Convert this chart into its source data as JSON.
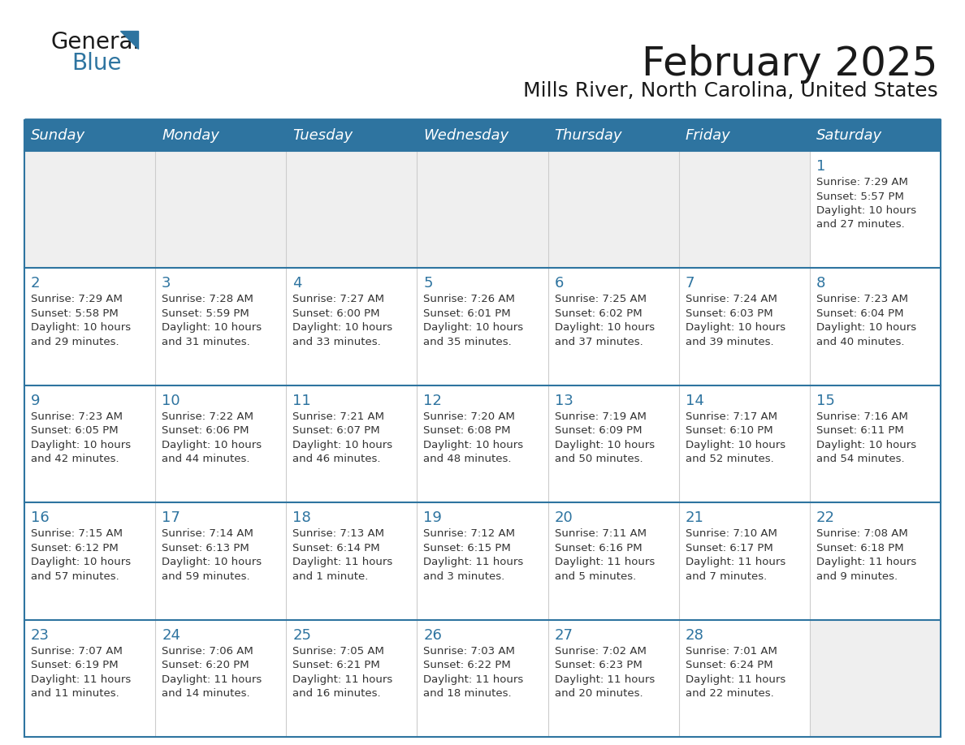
{
  "title": "February 2025",
  "subtitle": "Mills River, North Carolina, United States",
  "header_bg_color": "#2E74A0",
  "header_text_color": "#FFFFFF",
  "cell_bg_color": "#FFFFFF",
  "alt_cell_bg_color": "#EFEFEF",
  "border_color": "#2E74A0",
  "day_headers": [
    "Sunday",
    "Monday",
    "Tuesday",
    "Wednesday",
    "Thursday",
    "Friday",
    "Saturday"
  ],
  "title_color": "#1a1a1a",
  "subtitle_color": "#1a1a1a",
  "day_number_color": "#2E74A0",
  "cell_text_color": "#333333",
  "logo_general_color": "#1a1a1a",
  "logo_blue_color": "#2E74A0",
  "logo_triangle_color": "#2E74A0",
  "calendar_data": [
    [
      null,
      null,
      null,
      null,
      null,
      null,
      {
        "day": 1,
        "sunrise": "7:29 AM",
        "sunset": "5:57 PM",
        "daylight": "10 hours and 27 minutes."
      }
    ],
    [
      {
        "day": 2,
        "sunrise": "7:29 AM",
        "sunset": "5:58 PM",
        "daylight": "10 hours and 29 minutes."
      },
      {
        "day": 3,
        "sunrise": "7:28 AM",
        "sunset": "5:59 PM",
        "daylight": "10 hours and 31 minutes."
      },
      {
        "day": 4,
        "sunrise": "7:27 AM",
        "sunset": "6:00 PM",
        "daylight": "10 hours and 33 minutes."
      },
      {
        "day": 5,
        "sunrise": "7:26 AM",
        "sunset": "6:01 PM",
        "daylight": "10 hours and 35 minutes."
      },
      {
        "day": 6,
        "sunrise": "7:25 AM",
        "sunset": "6:02 PM",
        "daylight": "10 hours and 37 minutes."
      },
      {
        "day": 7,
        "sunrise": "7:24 AM",
        "sunset": "6:03 PM",
        "daylight": "10 hours and 39 minutes."
      },
      {
        "day": 8,
        "sunrise": "7:23 AM",
        "sunset": "6:04 PM",
        "daylight": "10 hours and 40 minutes."
      }
    ],
    [
      {
        "day": 9,
        "sunrise": "7:23 AM",
        "sunset": "6:05 PM",
        "daylight": "10 hours and 42 minutes."
      },
      {
        "day": 10,
        "sunrise": "7:22 AM",
        "sunset": "6:06 PM",
        "daylight": "10 hours and 44 minutes."
      },
      {
        "day": 11,
        "sunrise": "7:21 AM",
        "sunset": "6:07 PM",
        "daylight": "10 hours and 46 minutes."
      },
      {
        "day": 12,
        "sunrise": "7:20 AM",
        "sunset": "6:08 PM",
        "daylight": "10 hours and 48 minutes."
      },
      {
        "day": 13,
        "sunrise": "7:19 AM",
        "sunset": "6:09 PM",
        "daylight": "10 hours and 50 minutes."
      },
      {
        "day": 14,
        "sunrise": "7:17 AM",
        "sunset": "6:10 PM",
        "daylight": "10 hours and 52 minutes."
      },
      {
        "day": 15,
        "sunrise": "7:16 AM",
        "sunset": "6:11 PM",
        "daylight": "10 hours and 54 minutes."
      }
    ],
    [
      {
        "day": 16,
        "sunrise": "7:15 AM",
        "sunset": "6:12 PM",
        "daylight": "10 hours and 57 minutes."
      },
      {
        "day": 17,
        "sunrise": "7:14 AM",
        "sunset": "6:13 PM",
        "daylight": "10 hours and 59 minutes."
      },
      {
        "day": 18,
        "sunrise": "7:13 AM",
        "sunset": "6:14 PM",
        "daylight": "11 hours and 1 minute."
      },
      {
        "day": 19,
        "sunrise": "7:12 AM",
        "sunset": "6:15 PM",
        "daylight": "11 hours and 3 minutes."
      },
      {
        "day": 20,
        "sunrise": "7:11 AM",
        "sunset": "6:16 PM",
        "daylight": "11 hours and 5 minutes."
      },
      {
        "day": 21,
        "sunrise": "7:10 AM",
        "sunset": "6:17 PM",
        "daylight": "11 hours and 7 minutes."
      },
      {
        "day": 22,
        "sunrise": "7:08 AM",
        "sunset": "6:18 PM",
        "daylight": "11 hours and 9 minutes."
      }
    ],
    [
      {
        "day": 23,
        "sunrise": "7:07 AM",
        "sunset": "6:19 PM",
        "daylight": "11 hours and 11 minutes."
      },
      {
        "day": 24,
        "sunrise": "7:06 AM",
        "sunset": "6:20 PM",
        "daylight": "11 hours and 14 minutes."
      },
      {
        "day": 25,
        "sunrise": "7:05 AM",
        "sunset": "6:21 PM",
        "daylight": "11 hours and 16 minutes."
      },
      {
        "day": 26,
        "sunrise": "7:03 AM",
        "sunset": "6:22 PM",
        "daylight": "11 hours and 18 minutes."
      },
      {
        "day": 27,
        "sunrise": "7:02 AM",
        "sunset": "6:23 PM",
        "daylight": "11 hours and 20 minutes."
      },
      {
        "day": 28,
        "sunrise": "7:01 AM",
        "sunset": "6:24 PM",
        "daylight": "11 hours and 22 minutes."
      },
      null
    ]
  ]
}
